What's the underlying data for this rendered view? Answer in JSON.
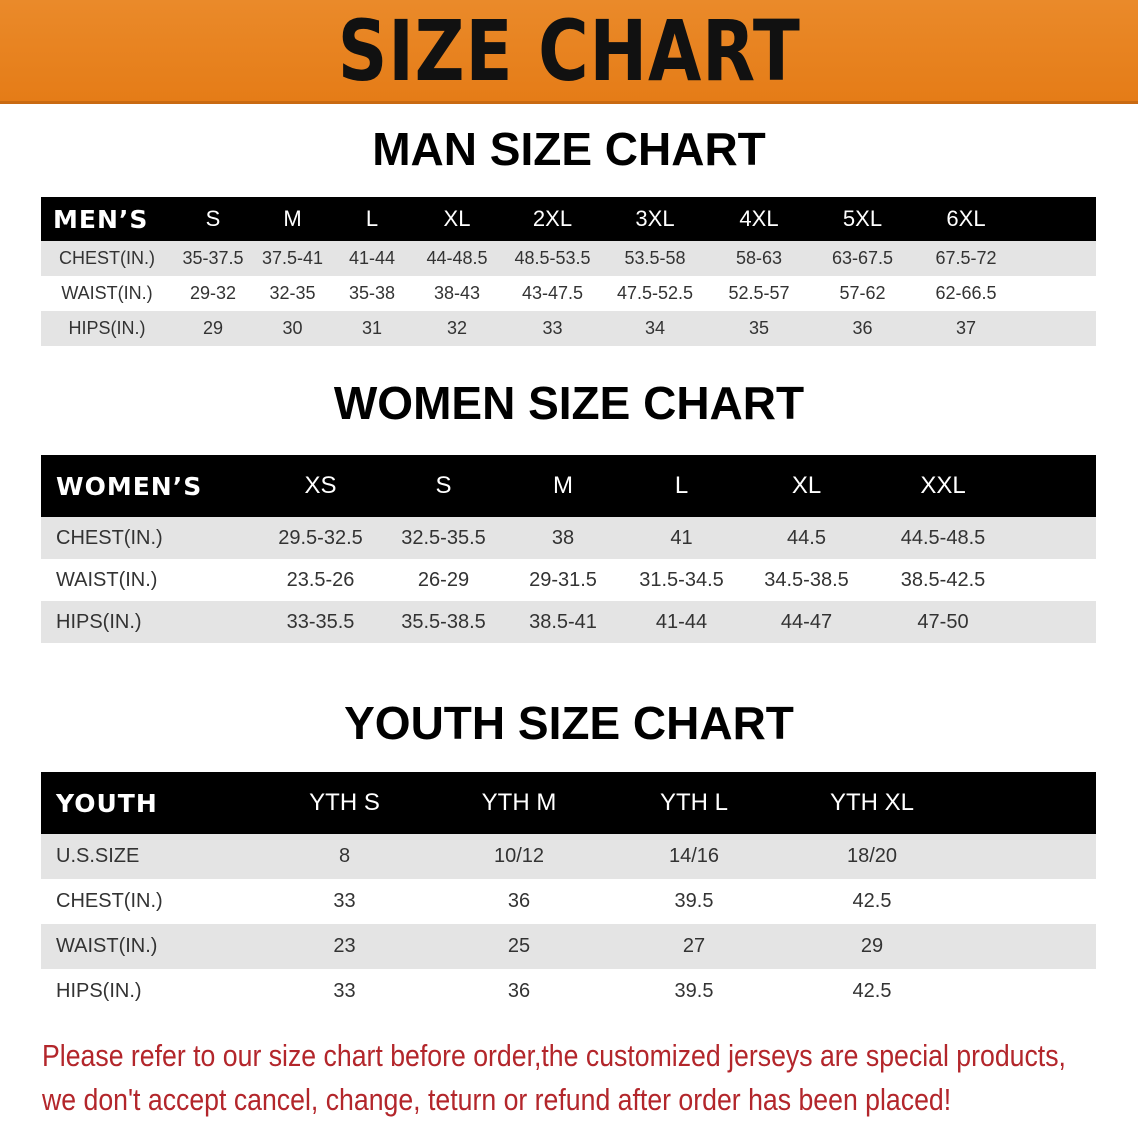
{
  "banner": {
    "title": "SIZE CHART",
    "color": "#e8821e"
  },
  "men": {
    "title": "MAN SIZE CHART",
    "header": [
      "MEN’S",
      "S",
      "M",
      "L",
      "XL",
      "2XL",
      "3XL",
      "4XL",
      "5XL",
      "6XL"
    ],
    "rows": [
      [
        "CHEST(IN.)",
        "35-37.5",
        "37.5-41",
        "41-44",
        "44-48.5",
        "48.5-53.5",
        "53.5-58",
        "58-63",
        "63-67.5",
        "67.5-72"
      ],
      [
        "WAIST(IN.)",
        "29-32",
        "32-35",
        "35-38",
        "38-43",
        "43-47.5",
        "47.5-52.5",
        "52.5-57",
        "57-62",
        "62-66.5"
      ],
      [
        "HIPS(IN.)",
        "29",
        "30",
        "31",
        "32",
        "33",
        "34",
        "35",
        "36",
        "37"
      ]
    ]
  },
  "women": {
    "title": "WOMEN SIZE CHART",
    "header": [
      "WOMEN’S",
      "XS",
      "S",
      "M",
      "L",
      "XL",
      "XXL"
    ],
    "rows": [
      [
        "CHEST(IN.)",
        "29.5-32.5",
        "32.5-35.5",
        "38",
        "41",
        "44.5",
        "44.5-48.5"
      ],
      [
        "WAIST(IN.)",
        "23.5-26",
        "26-29",
        "29-31.5",
        "31.5-34.5",
        "34.5-38.5",
        "38.5-42.5"
      ],
      [
        "HIPS(IN.)",
        "33-35.5",
        "35.5-38.5",
        "38.5-41",
        "41-44",
        "44-47",
        "47-50"
      ]
    ]
  },
  "youth": {
    "title": "YOUTH SIZE CHART",
    "header": [
      "YOUTH",
      "YTH S",
      "YTH M",
      "YTH L",
      "YTH XL"
    ],
    "rows": [
      [
        "U.S.SIZE",
        "8",
        "10/12",
        "14/16",
        "18/20"
      ],
      [
        "CHEST(IN.)",
        "33",
        "36",
        "39.5",
        "42.5"
      ],
      [
        "WAIST(IN.)",
        "23",
        "25",
        "27",
        "29"
      ],
      [
        "HIPS(IN.)",
        "33",
        "36",
        "39.5",
        "42.5"
      ]
    ]
  },
  "note": {
    "line1": "Please refer to our size chart before order,the customized jerseys are special products,",
    "line2": "we don't accept cancel, change, teturn or refund after order has been placed!",
    "color": "#b3262b"
  }
}
